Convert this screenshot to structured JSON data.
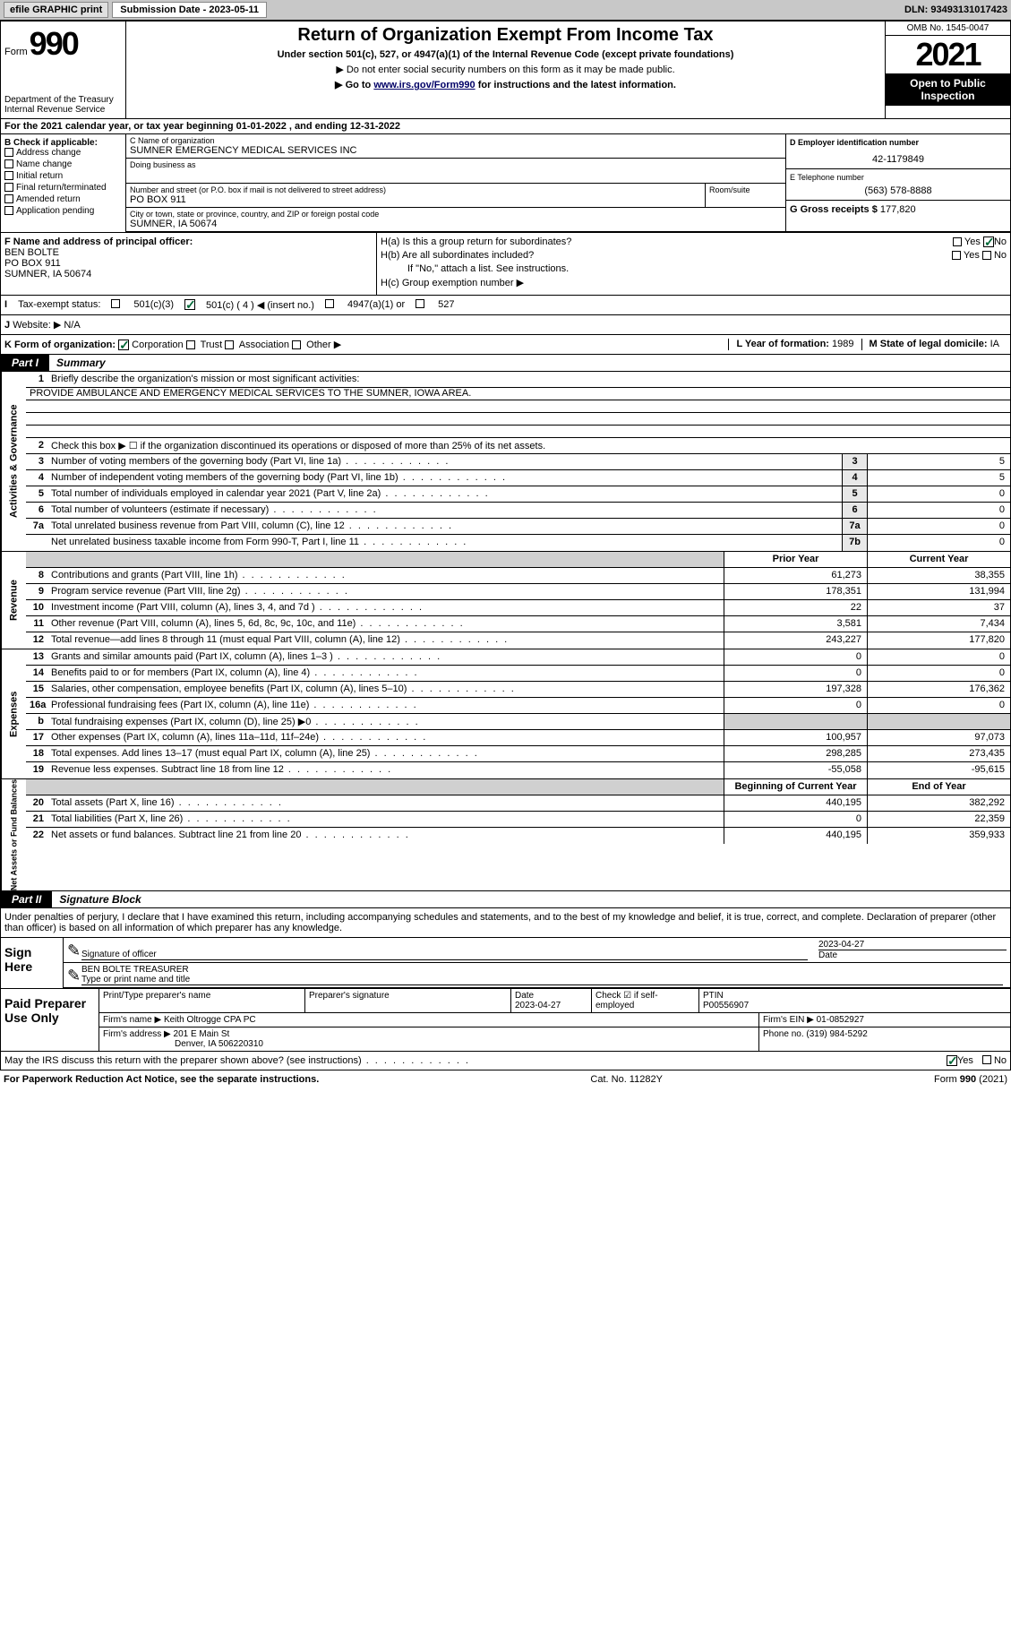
{
  "topbar": {
    "efile": "efile GRAPHIC print",
    "subdate_label": "Submission Date - ",
    "subdate": "2023-05-11",
    "dln_label": "DLN: ",
    "dln": "93493131017423"
  },
  "header": {
    "form_word": "Form",
    "form_num": "990",
    "dept": "Department of the Treasury\nInternal Revenue Service",
    "title": "Return of Organization Exempt From Income Tax",
    "subtitle": "Under section 501(c), 527, or 4947(a)(1) of the Internal Revenue Code (except private foundations)",
    "note1": "▶ Do not enter social security numbers on this form as it may be made public.",
    "note2_pre": "▶ Go to ",
    "note2_link": "www.irs.gov/Form990",
    "note2_post": " for instructions and the latest information.",
    "omb": "OMB No. 1545-0047",
    "year": "2021",
    "inspect": "Open to Public Inspection"
  },
  "rowA": "For the 2021 calendar year, or tax year beginning 01-01-2022    , and ending 12-31-2022",
  "boxB": {
    "label": "B Check if applicable:",
    "items": [
      "Address change",
      "Name change",
      "Initial return",
      "Final return/terminated",
      "Amended return",
      "Application pending"
    ]
  },
  "boxC": {
    "name_lbl": "C Name of organization",
    "name": "SUMNER EMERGENCY MEDICAL SERVICES INC",
    "dba_lbl": "Doing business as",
    "addr_lbl": "Number and street (or P.O. box if mail is not delivered to street address)",
    "room_lbl": "Room/suite",
    "addr": "PO BOX 911",
    "city_lbl": "City or town, state or province, country, and ZIP or foreign postal code",
    "city": "SUMNER, IA  50674"
  },
  "boxD": {
    "lbl": "D Employer identification number",
    "val": "42-1179849"
  },
  "boxE": {
    "lbl": "E Telephone number",
    "val": "(563) 578-8888"
  },
  "boxG": {
    "lbl": "G Gross receipts $ ",
    "val": "177,820"
  },
  "boxF": {
    "lbl": "F  Name and address of principal officer:",
    "name": "BEN BOLTE",
    "addr1": "PO BOX 911",
    "addr2": "SUMNER, IA  50674"
  },
  "boxH": {
    "a": "H(a)  Is this a group return for subordinates?",
    "b": "H(b)  Are all subordinates included?",
    "bnote": "If \"No,\" attach a list. See instructions.",
    "c": "H(c)  Group exemption number ▶",
    "yes": "Yes",
    "no": "No"
  },
  "boxI": {
    "lbl": "Tax-exempt status:",
    "c3": "501(c)(3)",
    "c4pre": "501(c) ( 4 ) ◀ (insert no.)",
    "a1": "4947(a)(1) or",
    "s527": "527"
  },
  "boxJ": {
    "lbl": "Website: ▶",
    "val": "N/A"
  },
  "boxK": {
    "lbl": "K Form of organization:",
    "corp": "Corporation",
    "trust": "Trust",
    "assoc": "Association",
    "other": "Other ▶"
  },
  "boxL": {
    "lbl": "L Year of formation: ",
    "val": "1989"
  },
  "boxM": {
    "lbl": "M State of legal domicile: ",
    "val": "IA"
  },
  "part1": {
    "hdr": "Part I",
    "title": "Summary"
  },
  "summary": {
    "q1": "Briefly describe the organization's mission or most significant activities:",
    "mission": "PROVIDE AMBULANCE AND EMERGENCY MEDICAL SERVICES TO THE SUMNER, IOWA AREA.",
    "q2": "Check this box ▶ ☐  if the organization discontinued its operations or disposed of more than 25% of its net assets.",
    "rows_gov": [
      {
        "n": "3",
        "t": "Number of voting members of the governing body (Part VI, line 1a)",
        "box": "3",
        "cur": "5"
      },
      {
        "n": "4",
        "t": "Number of independent voting members of the governing body (Part VI, line 1b)",
        "box": "4",
        "cur": "5"
      },
      {
        "n": "5",
        "t": "Total number of individuals employed in calendar year 2021 (Part V, line 2a)",
        "box": "5",
        "cur": "0"
      },
      {
        "n": "6",
        "t": "Total number of volunteers (estimate if necessary)",
        "box": "6",
        "cur": "0"
      },
      {
        "n": "7a",
        "t": "Total unrelated business revenue from Part VIII, column (C), line 12",
        "box": "7a",
        "cur": "0"
      },
      {
        "n": "",
        "t": "Net unrelated business taxable income from Form 990-T, Part I, line 11",
        "box": "7b",
        "cur": "0"
      }
    ],
    "hdr_prior": "Prior Year",
    "hdr_cur": "Current Year",
    "rows_rev": [
      {
        "n": "8",
        "t": "Contributions and grants (Part VIII, line 1h)",
        "p": "61,273",
        "c": "38,355"
      },
      {
        "n": "9",
        "t": "Program service revenue (Part VIII, line 2g)",
        "p": "178,351",
        "c": "131,994"
      },
      {
        "n": "10",
        "t": "Investment income (Part VIII, column (A), lines 3, 4, and 7d )",
        "p": "22",
        "c": "37"
      },
      {
        "n": "11",
        "t": "Other revenue (Part VIII, column (A), lines 5, 6d, 8c, 9c, 10c, and 11e)",
        "p": "3,581",
        "c": "7,434"
      },
      {
        "n": "12",
        "t": "Total revenue—add lines 8 through 11 (must equal Part VIII, column (A), line 12)",
        "p": "243,227",
        "c": "177,820"
      }
    ],
    "rows_exp": [
      {
        "n": "13",
        "t": "Grants and similar amounts paid (Part IX, column (A), lines 1–3 )",
        "p": "0",
        "c": "0"
      },
      {
        "n": "14",
        "t": "Benefits paid to or for members (Part IX, column (A), line 4)",
        "p": "0",
        "c": "0"
      },
      {
        "n": "15",
        "t": "Salaries, other compensation, employee benefits (Part IX, column (A), lines 5–10)",
        "p": "197,328",
        "c": "176,362"
      },
      {
        "n": "16a",
        "t": "Professional fundraising fees (Part IX, column (A), line 11e)",
        "p": "0",
        "c": "0"
      },
      {
        "n": "b",
        "t": "Total fundraising expenses (Part IX, column (D), line 25) ▶0",
        "p": "",
        "c": "",
        "gray": true
      },
      {
        "n": "17",
        "t": "Other expenses (Part IX, column (A), lines 11a–11d, 11f–24e)",
        "p": "100,957",
        "c": "97,073"
      },
      {
        "n": "18",
        "t": "Total expenses. Add lines 13–17 (must equal Part IX, column (A), line 25)",
        "p": "298,285",
        "c": "273,435"
      },
      {
        "n": "19",
        "t": "Revenue less expenses. Subtract line 18 from line 12",
        "p": "-55,058",
        "c": "-95,615"
      }
    ],
    "hdr_beg": "Beginning of Current Year",
    "hdr_end": "End of Year",
    "rows_net": [
      {
        "n": "20",
        "t": "Total assets (Part X, line 16)",
        "p": "440,195",
        "c": "382,292"
      },
      {
        "n": "21",
        "t": "Total liabilities (Part X, line 26)",
        "p": "0",
        "c": "22,359"
      },
      {
        "n": "22",
        "t": "Net assets or fund balances. Subtract line 21 from line 20",
        "p": "440,195",
        "c": "359,933"
      }
    ],
    "side_gov": "Activities & Governance",
    "side_rev": "Revenue",
    "side_exp": "Expenses",
    "side_net": "Net Assets or Fund Balances"
  },
  "part2": {
    "hdr": "Part II",
    "title": "Signature Block"
  },
  "sig": {
    "decl": "Under penalties of perjury, I declare that I have examined this return, including accompanying schedules and statements, and to the best of my knowledge and belief, it is true, correct, and complete. Declaration of preparer (other than officer) is based on all information of which preparer has any knowledge.",
    "sign_here": "Sign Here",
    "sig_officer": "Signature of officer",
    "date_lbl": "Date",
    "date_val": "2023-04-27",
    "name_title": "BEN BOLTE TREASURER",
    "type_name": "Type or print name and title"
  },
  "prep": {
    "label": "Paid Preparer Use Only",
    "print_lbl": "Print/Type preparer's name",
    "sig_lbl": "Preparer's signature",
    "date_lbl": "Date",
    "date_val": "2023-04-27",
    "check_lbl": "Check ☑ if self-employed",
    "ptin_lbl": "PTIN",
    "ptin": "P00556907",
    "firm_name_lbl": "Firm's name   ▶ ",
    "firm_name": "Keith Oltrogge CPA PC",
    "firm_ein_lbl": "Firm's EIN ▶ ",
    "firm_ein": "01-0852927",
    "firm_addr_lbl": "Firm's address ▶ ",
    "firm_addr1": "201 E Main St",
    "firm_addr2": "Denver, IA  506220310",
    "phone_lbl": "Phone no. ",
    "phone": "(319) 984-5292"
  },
  "discuss": {
    "txt": "May the IRS discuss this return with the preparer shown above? (see instructions)",
    "yes": "Yes",
    "no": "No"
  },
  "footer": {
    "left": "For Paperwork Reduction Act Notice, see the separate instructions.",
    "mid": "Cat. No. 11282Y",
    "right": "Form 990 (2021)"
  }
}
